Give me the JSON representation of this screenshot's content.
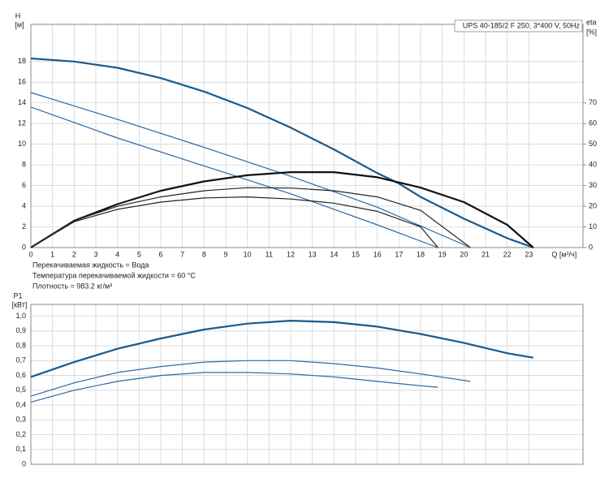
{
  "chart_data": [
    {
      "type": "line",
      "title": "UPS 40-185/2 F 250, 3*400 V, 50Hz",
      "y_label": "H",
      "y_unit": "[м]",
      "y2_label": "eta",
      "y2_unit": "[%]",
      "x_label": "Q [м³/ч]",
      "notes": [
        "Перекачиваемая жидкость = Вода",
        "Температура перекачиваемой жидкости = 60 °C",
        "Плотность = 983.2 кг/м³"
      ],
      "xlim": [
        0,
        25.5
      ],
      "xticks": [
        0,
        1,
        2,
        3,
        4,
        5,
        6,
        7,
        8,
        9,
        10,
        11,
        12,
        13,
        14,
        15,
        16,
        17,
        18,
        19,
        20,
        21,
        22,
        23
      ],
      "ylim": [
        0,
        21.6
      ],
      "yticks": [
        0,
        2,
        4,
        6,
        8,
        10,
        12,
        14,
        16,
        18
      ],
      "y2lim": [
        0,
        108
      ],
      "y2ticks": [
        0,
        10,
        20,
        30,
        40,
        50,
        60,
        70
      ],
      "grid": true,
      "series": [
        {
          "color": "#1a5a8c",
          "width": 2.2,
          "x": [
            0,
            2,
            4,
            6,
            8,
            10,
            12,
            14,
            16,
            17,
            18,
            20,
            22,
            23.2
          ],
          "values": [
            18.3,
            18.0,
            17.4,
            16.4,
            15.1,
            13.5,
            11.6,
            9.5,
            7.2,
            6.2,
            4.9,
            2.8,
            0.9,
            0
          ]
        },
        {
          "color": "#2a6aa8",
          "width": 1.2,
          "x": [
            0,
            4,
            8,
            12,
            16,
            20.3
          ],
          "values": [
            15.0,
            12.4,
            9.7,
            6.9,
            3.9,
            0
          ]
        },
        {
          "color": "#2a6aa8",
          "width": 1.2,
          "x": [
            0,
            4,
            8,
            12,
            16,
            18.8
          ],
          "values": [
            13.6,
            10.6,
            7.9,
            5.2,
            2.2,
            0
          ]
        },
        {
          "color": "#111111",
          "width": 2.2,
          "axis": "y2",
          "x": [
            0,
            2,
            4,
            6,
            8,
            10,
            12,
            14,
            16,
            18,
            20,
            22,
            23.2
          ],
          "values": [
            0,
            13,
            21,
            27.5,
            32,
            35,
            36.5,
            36.5,
            34,
            29,
            22,
            11,
            0
          ]
        },
        {
          "color": "#222222",
          "width": 1.2,
          "axis": "y2",
          "x": [
            0,
            2,
            4,
            6,
            8,
            10,
            12,
            14,
            16,
            18,
            20.3
          ],
          "values": [
            0,
            13,
            20,
            24.5,
            27.5,
            29,
            28.8,
            27.5,
            24.5,
            18,
            0
          ]
        },
        {
          "color": "#222222",
          "width": 1.2,
          "axis": "y2",
          "x": [
            0,
            2,
            4,
            6,
            8,
            10,
            12,
            14,
            16,
            18,
            18.8
          ],
          "values": [
            0,
            12.5,
            18.5,
            22,
            24,
            24.5,
            23.5,
            21.5,
            17.5,
            10,
            0
          ]
        }
      ]
    },
    {
      "type": "line",
      "y_label": "P1",
      "y_unit": "[кВт]",
      "xlim": [
        0,
        25.5
      ],
      "xticks": [
        0,
        1,
        2,
        3,
        4,
        5,
        6,
        7,
        8,
        9,
        10,
        11,
        12,
        13,
        14,
        15,
        16,
        17,
        18,
        19,
        20,
        21,
        22,
        23
      ],
      "ylim": [
        0,
        1.08
      ],
      "yticks": [
        0,
        {
          "value": 0.1,
          "label": "0,1"
        },
        {
          "value": 0.2,
          "label": "0,2"
        },
        {
          "value": 0.3,
          "label": "0,3"
        },
        {
          "value": 0.4,
          "label": "0,4"
        },
        {
          "value": 0.5,
          "label": "0,5"
        },
        {
          "value": 0.6,
          "label": "0,6"
        },
        {
          "value": 0.7,
          "label": "0,7"
        },
        {
          "value": 0.8,
          "label": "0,8"
        },
        {
          "value": 0.9,
          "label": "0,9"
        },
        {
          "value": 1.0,
          "label": "1,0"
        }
      ],
      "grid": true,
      "series": [
        {
          "color": "#1a5a8c",
          "width": 2.2,
          "x": [
            0,
            2,
            4,
            6,
            8,
            10,
            12,
            14,
            16,
            18,
            20,
            22,
            23.2
          ],
          "values": [
            0.59,
            0.69,
            0.78,
            0.85,
            0.91,
            0.95,
            0.97,
            0.96,
            0.93,
            0.88,
            0.82,
            0.75,
            0.72
          ]
        },
        {
          "color": "#2a6aa8",
          "width": 1.2,
          "x": [
            0,
            2,
            4,
            6,
            8,
            10,
            12,
            14,
            16,
            18,
            20.3
          ],
          "values": [
            0.46,
            0.55,
            0.62,
            0.66,
            0.69,
            0.7,
            0.7,
            0.68,
            0.65,
            0.61,
            0.56
          ]
        },
        {
          "color": "#2a6aa8",
          "width": 1.2,
          "x": [
            0,
            2,
            4,
            6,
            8,
            10,
            12,
            14,
            16,
            18,
            18.8
          ],
          "values": [
            0.42,
            0.5,
            0.56,
            0.6,
            0.62,
            0.62,
            0.61,
            0.59,
            0.56,
            0.53,
            0.52
          ]
        }
      ]
    }
  ]
}
